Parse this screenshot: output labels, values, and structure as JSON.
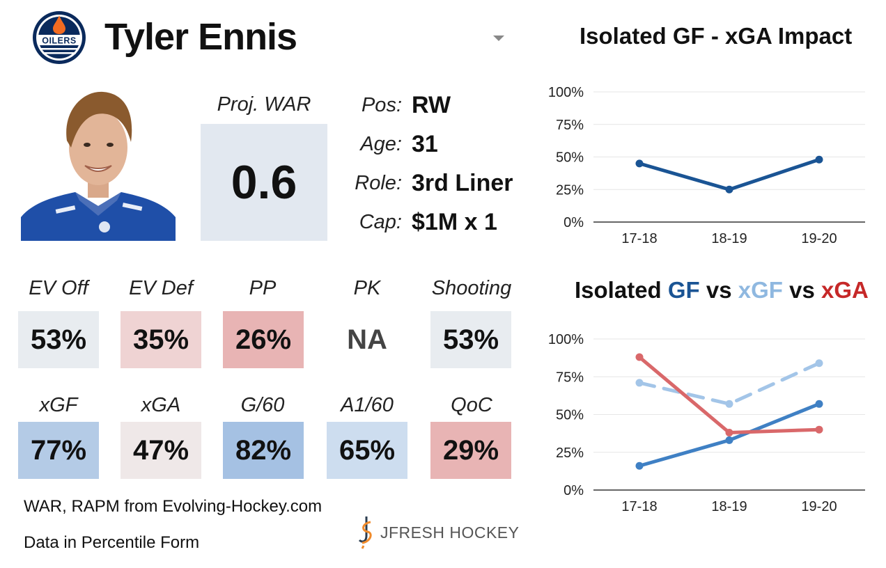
{
  "header": {
    "player_name": "Tyler Ennis",
    "team_logo_text": "OILERS"
  },
  "war": {
    "label": "Proj. WAR",
    "value": "0.6"
  },
  "info": [
    {
      "label": "Pos:",
      "value": "RW"
    },
    {
      "label": "Age:",
      "value": "31"
    },
    {
      "label": "Role:",
      "value": "3rd Liner"
    },
    {
      "label": "Cap:",
      "value": "$1M x 1"
    }
  ],
  "stats_row1": [
    {
      "label": "EV Off",
      "value": "53%",
      "color": "#e8ecf0"
    },
    {
      "label": "EV Def",
      "value": "35%",
      "color": "#efd3d3"
    },
    {
      "label": "PP",
      "value": "26%",
      "color": "#e8b4b4"
    },
    {
      "label": "PK",
      "value": "NA",
      "color": "#ffffff"
    },
    {
      "label": "Shooting",
      "value": "53%",
      "color": "#e8ecf0"
    }
  ],
  "stats_row2": [
    {
      "label": "xGF",
      "value": "77%",
      "color": "#b4cbe6"
    },
    {
      "label": "xGA",
      "value": "47%",
      "color": "#efe8e8"
    },
    {
      "label": "G/60",
      "value": "82%",
      "color": "#a5c1e3"
    },
    {
      "label": "A1/60",
      "value": "65%",
      "color": "#cdddef"
    },
    {
      "label": "QoC",
      "value": "29%",
      "color": "#e8b4b4"
    }
  ],
  "footer": {
    "source": "WAR, RAPM from  Evolving-Hockey.com",
    "note": "Data in Percentile Form",
    "brand": "JFRESH HOCKEY"
  },
  "chart_data": [
    {
      "type": "line",
      "title": "Isolated GF - xGA Impact",
      "categories": [
        "17-18",
        "18-19",
        "19-20"
      ],
      "y_ticks": [
        "100%",
        "75%",
        "50%",
        "25%",
        "0%"
      ],
      "ylim": [
        0,
        100
      ],
      "grid": true,
      "series": [
        {
          "values": [
            45,
            25,
            48
          ],
          "color": "#1a5494",
          "style": "solid"
        }
      ]
    },
    {
      "type": "line",
      "title_parts": [
        {
          "text": "Isolated ",
          "color": "#111111"
        },
        {
          "text": "GF",
          "color": "#1a5494"
        },
        {
          "text": " vs ",
          "color": "#111111"
        },
        {
          "text": "xGF",
          "color": "#8fb8e0"
        },
        {
          "text": " vs ",
          "color": "#111111"
        },
        {
          "text": "xGA",
          "color": "#c62828"
        }
      ],
      "categories": [
        "17-18",
        "18-19",
        "19-20"
      ],
      "y_ticks": [
        "100%",
        "75%",
        "50%",
        "25%",
        "0%"
      ],
      "ylim": [
        0,
        100
      ],
      "grid": true,
      "series": [
        {
          "name": "GF",
          "values": [
            16,
            33,
            57
          ],
          "color": "#3f80c4",
          "style": "solid"
        },
        {
          "name": "xGF",
          "values": [
            71,
            57,
            84
          ],
          "color": "#a3c5e8",
          "style": "dashed"
        },
        {
          "name": "xGA",
          "values": [
            88,
            38,
            40
          ],
          "color": "#d9686a",
          "style": "solid"
        }
      ]
    }
  ]
}
